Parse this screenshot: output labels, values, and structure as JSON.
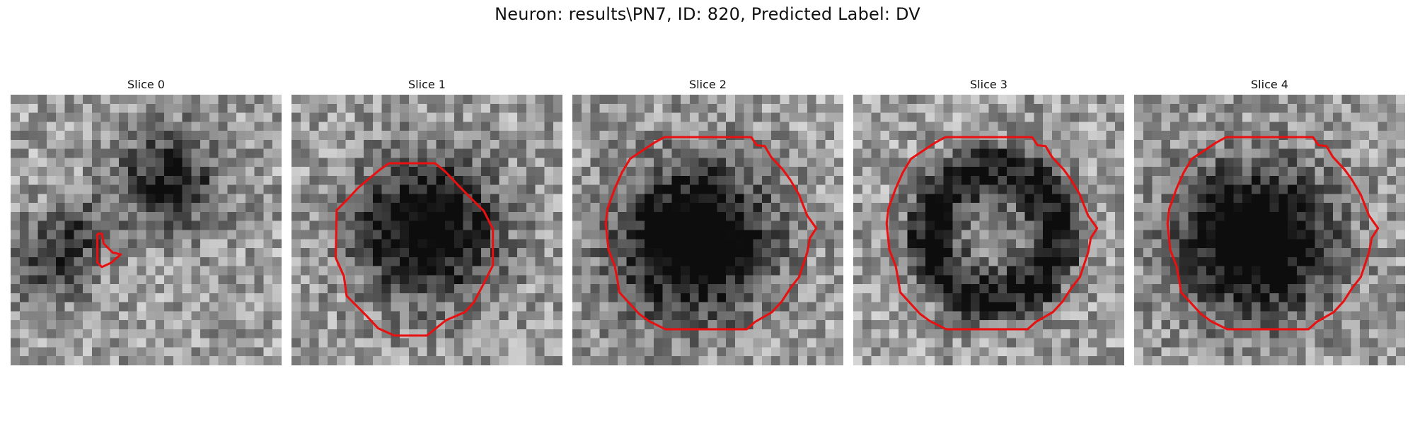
{
  "title": "Neuron: results\\PN7, ID: 820, Predicted Label: DV",
  "outline_color": "#e81010",
  "panels": [
    {
      "label": "Slice 0",
      "seed": 11,
      "roi": "small",
      "dark": "upper-mid"
    },
    {
      "label": "Slice 1",
      "seed": 23,
      "roi": "medium",
      "dark": "center"
    },
    {
      "label": "Slice 2",
      "seed": 37,
      "roi": "large",
      "dark": "left-center"
    },
    {
      "label": "Slice 3",
      "seed": 41,
      "roi": "large",
      "dark": "ring"
    },
    {
      "label": "Slice 4",
      "seed": 53,
      "roi": "large",
      "dark": "left-center"
    }
  ]
}
